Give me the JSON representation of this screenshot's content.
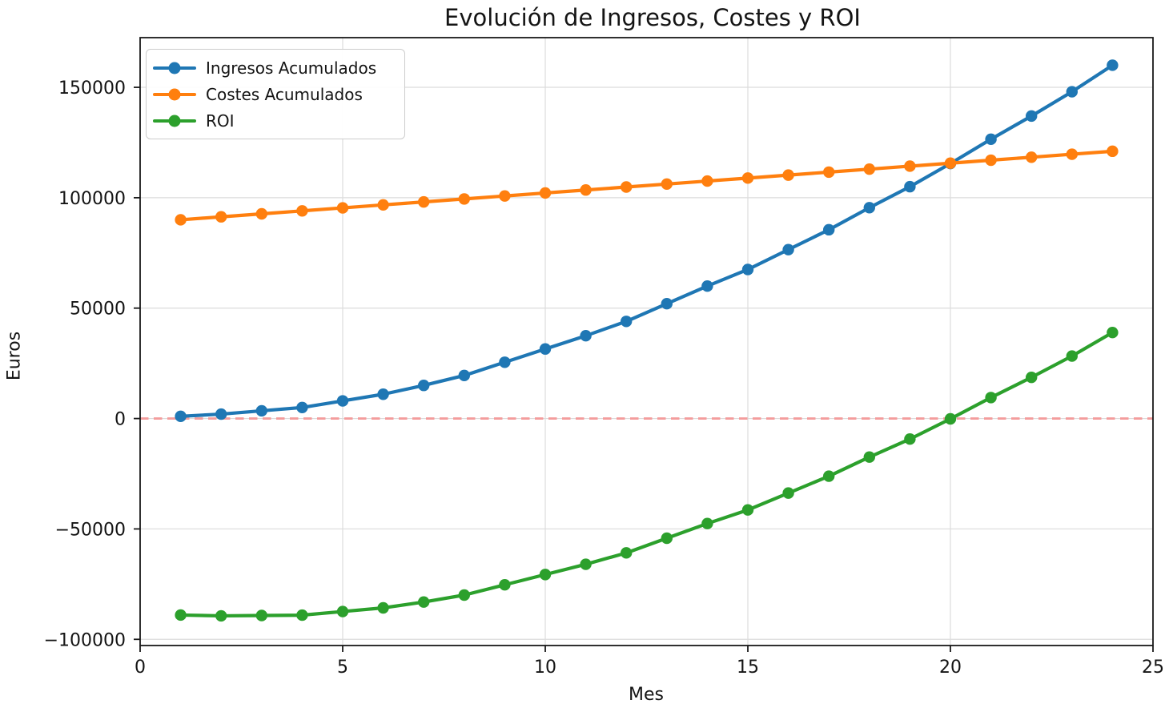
{
  "chart_data": {
    "type": "line",
    "title": "Evolución de Ingresos, Costes y ROI",
    "xlabel": "Mes",
    "ylabel": "Euros",
    "grid": true,
    "legend_position": "upper left",
    "xlim": [
      0,
      25
    ],
    "ylim": [
      -102800,
      172500
    ],
    "xticks": [
      0,
      5,
      10,
      15,
      20,
      25
    ],
    "xtick_labels": [
      "0",
      "5",
      "10",
      "15",
      "20",
      "25"
    ],
    "yticks": [
      -100000,
      -50000,
      0,
      50000,
      100000,
      150000
    ],
    "ytick_labels": [
      "−100000",
      "−50000",
      "0",
      "50000",
      "100000",
      "150000"
    ],
    "x": [
      1,
      2,
      3,
      4,
      5,
      6,
      7,
      8,
      9,
      10,
      11,
      12,
      13,
      14,
      15,
      16,
      17,
      18,
      19,
      20,
      21,
      22,
      23,
      24
    ],
    "series": [
      {
        "name": "Ingresos Acumulados",
        "color": "#1f77b4",
        "values": [
          1000,
          2000,
          3500,
          5000,
          8000,
          11000,
          15000,
          19500,
          25500,
          31500,
          37500,
          44000,
          52000,
          60000,
          67500,
          76500,
          85500,
          95500,
          105000,
          115500,
          126500,
          137000,
          148000,
          160000
        ]
      },
      {
        "name": "Costes Acumulados",
        "color": "#ff7f0e",
        "values": [
          90000,
          91350,
          92700,
          94050,
          95400,
          96750,
          98100,
          99450,
          100800,
          102150,
          103500,
          104850,
          106200,
          107550,
          108900,
          110250,
          111600,
          112950,
          114300,
          115650,
          117000,
          118350,
          119700,
          121050
        ]
      },
      {
        "name": "ROI",
        "color": "#2ca02c",
        "values": [
          -89000,
          -89350,
          -89200,
          -89050,
          -87400,
          -85750,
          -83100,
          -79950,
          -75300,
          -70650,
          -66000,
          -60850,
          -54200,
          -47550,
          -41400,
          -33750,
          -26100,
          -17450,
          -9300,
          -150,
          9500,
          18650,
          28300,
          38950
        ]
      }
    ],
    "reference_line": {
      "y": 0,
      "style": "dashed",
      "color": "#f49c9c"
    }
  }
}
